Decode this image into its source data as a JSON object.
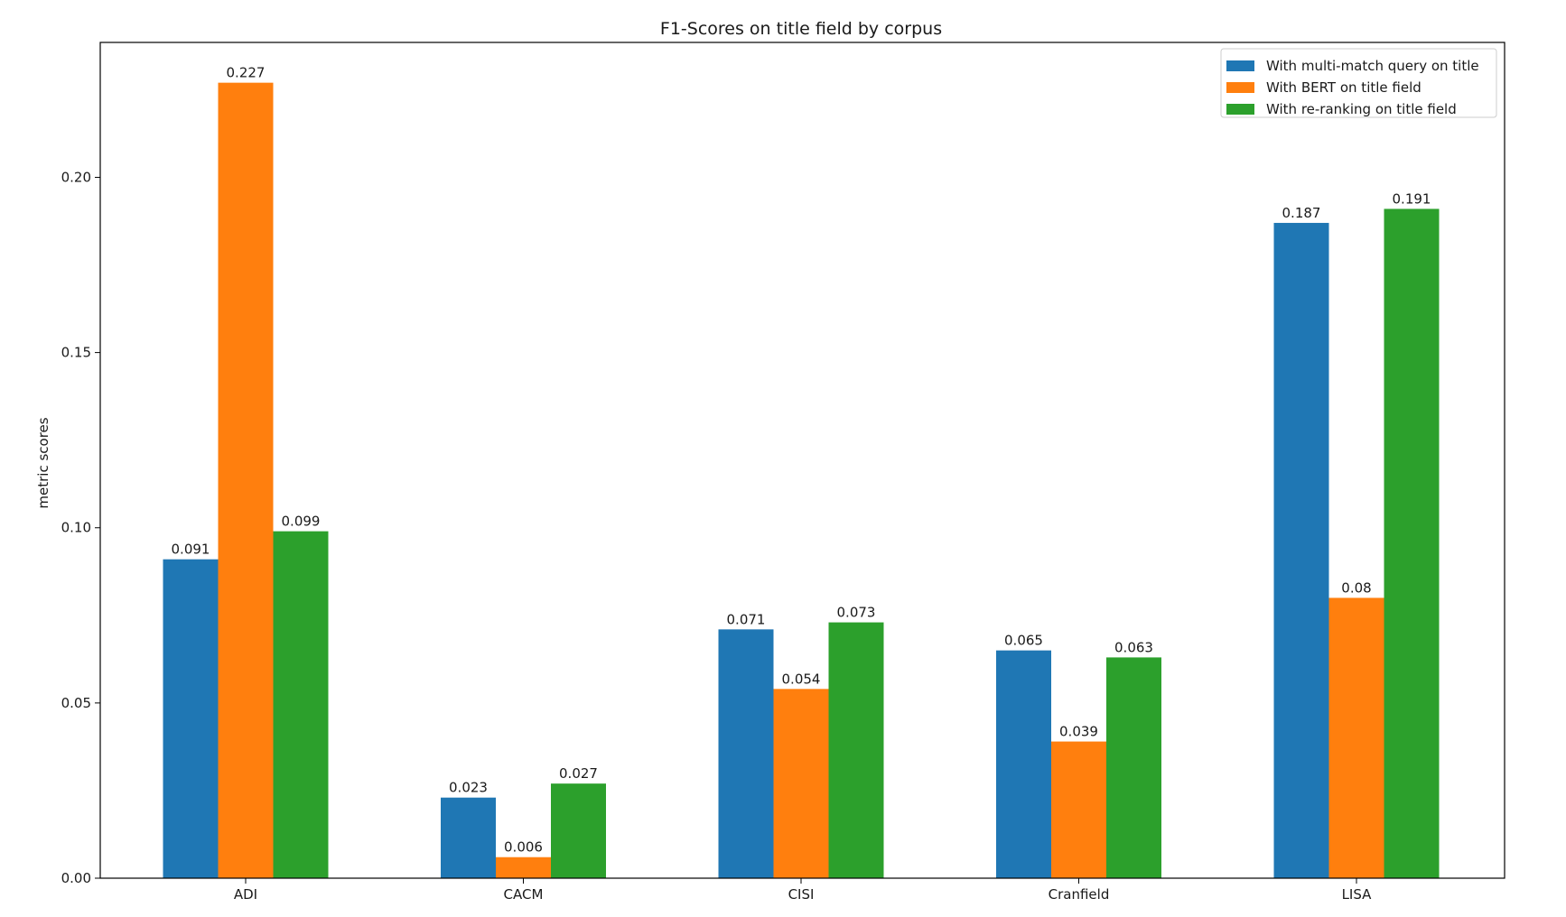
{
  "chart_data": {
    "type": "bar",
    "title": "F1-Scores on title field by corpus",
    "xlabel": "",
    "ylabel": "metric scores",
    "categories": [
      "ADI",
      "CACM",
      "CISI",
      "Cranfield",
      "LISA"
    ],
    "series": [
      {
        "name": "With multi-match query on title",
        "color": "#1f77b4",
        "values": [
          0.091,
          0.023,
          0.071,
          0.065,
          0.187
        ],
        "labels": [
          "0.091",
          "0.023",
          "0.071",
          "0.065",
          "0.187"
        ]
      },
      {
        "name": "With BERT on title field",
        "color": "#ff7f0e",
        "values": [
          0.227,
          0.006,
          0.054,
          0.039,
          0.08
        ],
        "labels": [
          "0.227",
          "0.006",
          "0.054",
          "0.039",
          "0.08"
        ]
      },
      {
        "name": "With re-ranking on title field",
        "color": "#2ca02c",
        "values": [
          0.099,
          0.027,
          0.073,
          0.063,
          0.191
        ],
        "labels": [
          "0.099",
          "0.027",
          "0.073",
          "0.063",
          "0.191"
        ]
      }
    ],
    "ylim": [
      0,
      0.2385
    ],
    "yticks": [
      0.0,
      0.05,
      0.1,
      0.15,
      0.2
    ],
    "ytick_labels": [
      "0.00",
      "0.05",
      "0.10",
      "0.15",
      "0.20"
    ],
    "grid": false,
    "legend_position": "top-right"
  }
}
